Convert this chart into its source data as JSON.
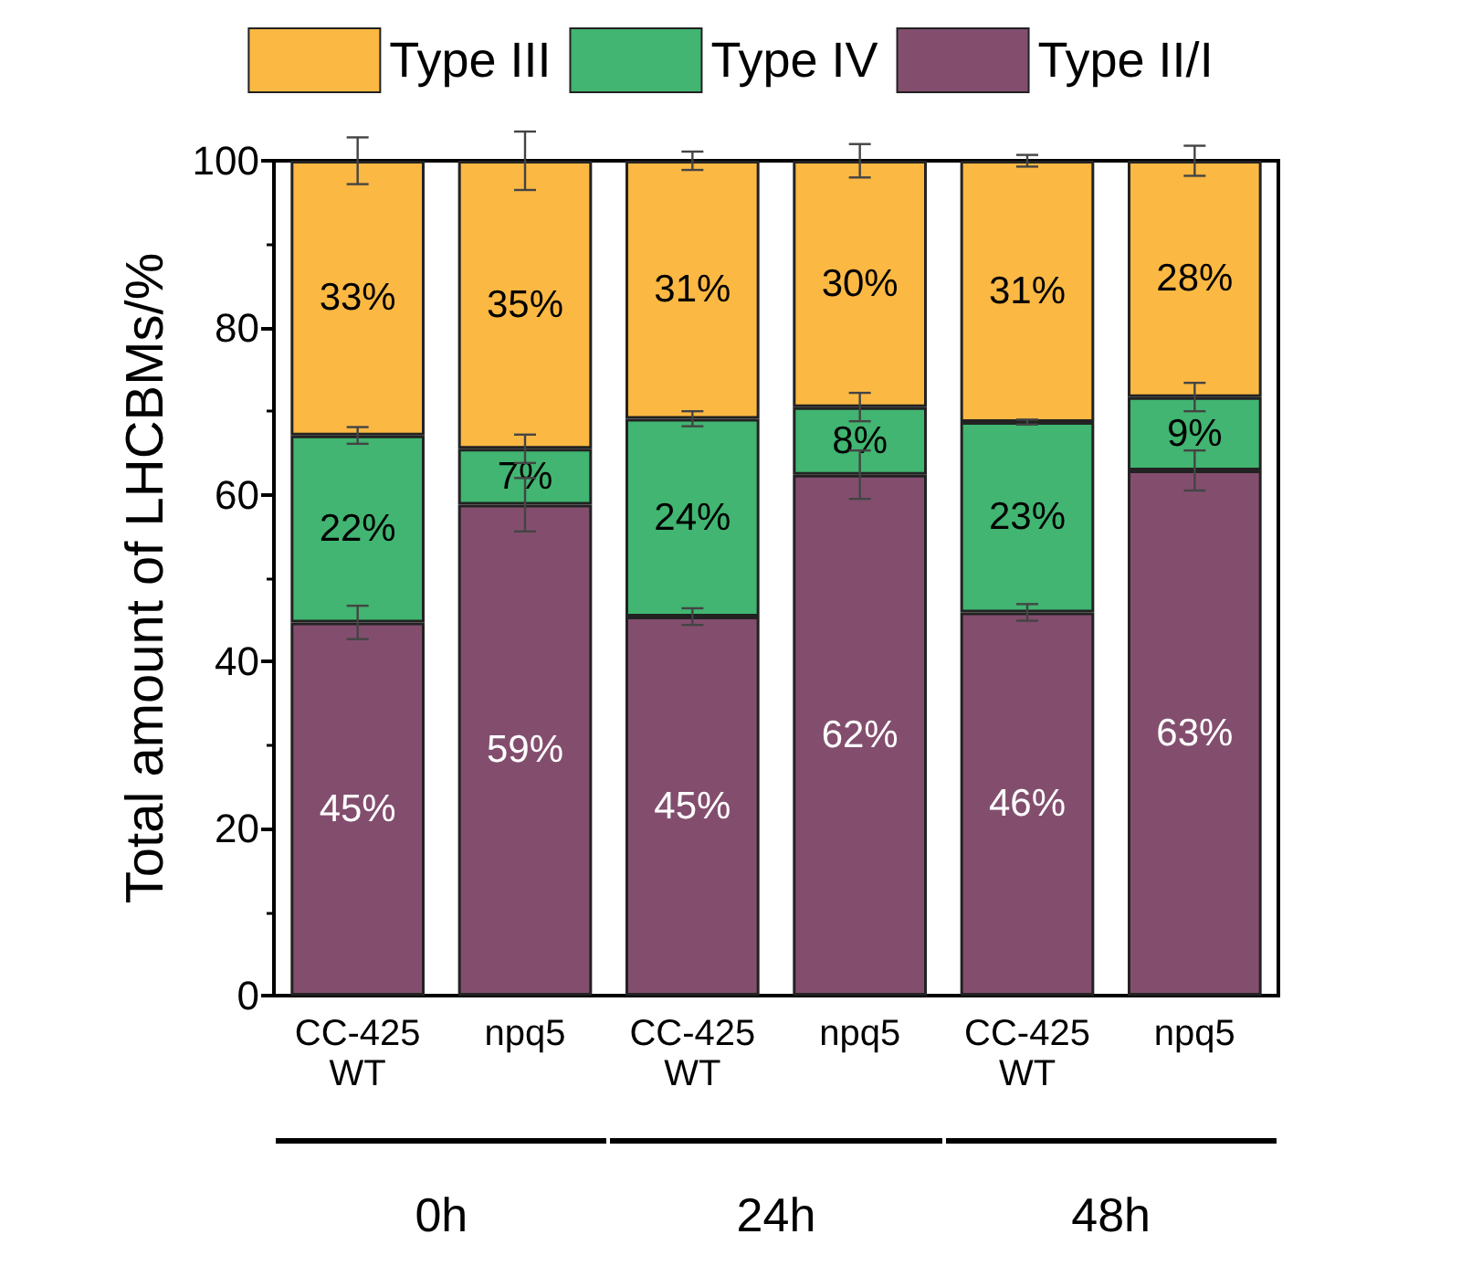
{
  "chart_data": {
    "type": "bar",
    "stacked": true,
    "categories": [
      "CC-425\nWT",
      "npq5",
      "CC-425\nWT",
      "npq5",
      "CC-425\nWT",
      "npq5"
    ],
    "ylabel": "Total amount of LHCBMs/%",
    "ylim": [
      0,
      100
    ],
    "yticks": [
      0,
      20,
      40,
      60,
      80,
      100
    ],
    "series": [
      {
        "name": "Type II/I",
        "color": "#834e6e",
        "values": [
          44.7,
          58.8,
          45.4,
          62.4,
          45.9,
          62.9
        ],
        "errors": [
          2.0,
          3.2,
          1.0,
          2.9,
          1.0,
          2.4
        ],
        "value_labels": [
          "45%",
          "59%",
          "45%",
          "62%",
          "46%",
          "63%"
        ]
      },
      {
        "name": "Type IV",
        "color": "#41b571",
        "values": [
          22.4,
          6.7,
          23.7,
          8.1,
          22.8,
          8.8
        ],
        "errors": [
          1.0,
          1.7,
          0.9,
          1.7,
          0.3,
          1.7
        ],
        "value_labels": [
          "22%",
          "7%",
          "24%",
          "8%",
          "23%",
          "9%"
        ]
      },
      {
        "name": "Type III",
        "color": "#fbb843",
        "values": [
          32.9,
          34.5,
          30.9,
          29.5,
          31.3,
          28.3
        ],
        "errors": [
          2.8,
          3.5,
          1.1,
          2.0,
          0.7,
          1.8
        ],
        "value_labels": [
          "33%",
          "35%",
          "31%",
          "30%",
          "31%",
          "28%"
        ]
      }
    ],
    "annotations": [
      "0h",
      "24h",
      "48h"
    ],
    "legend": "top",
    "grid": false
  }
}
